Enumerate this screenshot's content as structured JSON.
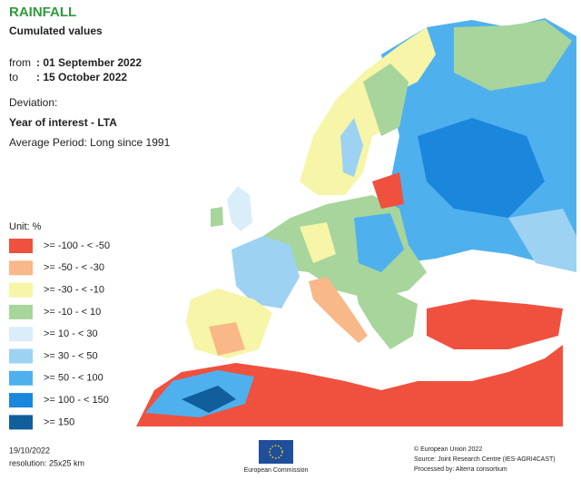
{
  "header": {
    "title": "RAINFALL",
    "subtitle": "Cumulated values",
    "from_label": "from",
    "from_date": ": 01 September 2022",
    "to_label": "to",
    "to_date": ": 15 October 2022",
    "deviation_label": "Deviation:",
    "indicator": "Year of interest - LTA",
    "average_period": "Average Period: Long since 1991"
  },
  "legend": {
    "unit": "Unit: %",
    "classes": [
      {
        "label": ">= -100 - < -50",
        "color": "#f0503e"
      },
      {
        "label": ">= -50 - < -30",
        "color": "#f8b888"
      },
      {
        "label": ">= -30 - < -10",
        "color": "#f6f5a8"
      },
      {
        "label": ">= -10 - < 10",
        "color": "#a7d59c"
      },
      {
        "label": ">= 10 - < 30",
        "color": "#d9eef9"
      },
      {
        "label": ">= 30 - < 50",
        "color": "#9dd2f3"
      },
      {
        "label": ">= 50 - < 100",
        "color": "#4fb0ee"
      },
      {
        "label": ">= 100 - < 150",
        "color": "#1a86dc"
      },
      {
        "label": ">= 150",
        "color": "#115e9c"
      }
    ]
  },
  "footer": {
    "date": "19/10/2022",
    "resolution": "resolution: 25x25 km",
    "logo_text": "European Commission",
    "copyright": "© European Union 2022",
    "source": "Source: Joint Research Centre (IES-AGRI4CAST)",
    "processed": "Processed by: Alterra consortium"
  }
}
